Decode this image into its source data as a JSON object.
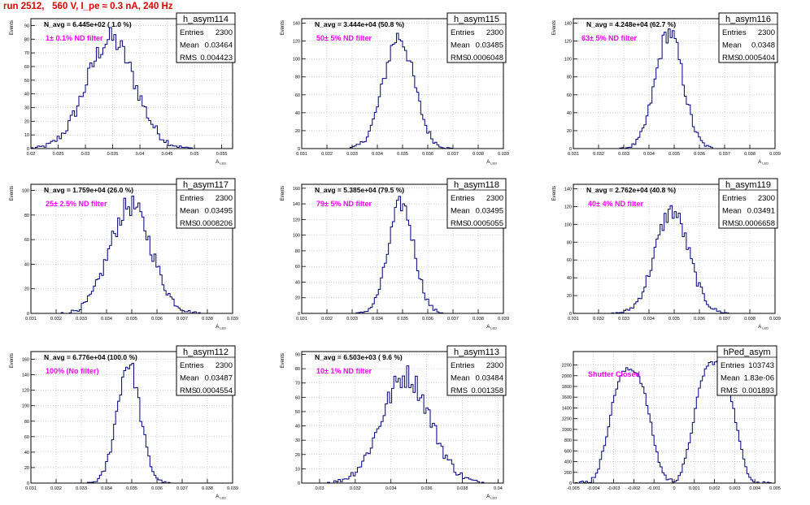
{
  "page": {
    "title": "run 2512,   560 V, I_pe ≈ 0.3 nA, 240 Hz"
  },
  "style": {
    "line_color": "#00007f",
    "annotation_color": "#ff00ff",
    "title_color": "#e00000",
    "grid_color": "#b0b0b0"
  },
  "chart_data": [
    {
      "type": "histogram",
      "name": "h_asym114",
      "ylabel": "Events",
      "xlabel": "A_LED",
      "xlabel_main": "A",
      "xlabel_sub": "LED",
      "navg": "N_avg = 6.445e+02 ( 1.0 %)",
      "annotation": "1± 0.1% ND filter",
      "stats": {
        "entries": "2300",
        "mean": "0.03464",
        "rms": "0.004423"
      },
      "stats_labels": {
        "entries": "Entries",
        "mean": "Mean",
        "rms": "RMS"
      },
      "xlim": [
        0.02,
        0.057
      ],
      "ylim": [
        0,
        95
      ],
      "xticks": [
        0.02,
        0.025,
        0.03,
        0.035,
        0.04,
        0.045,
        0.05,
        0.055
      ],
      "xtick_labels": [
        "0.02",
        "0.025",
        "0.03",
        "0.035",
        "0.04",
        "0.045",
        "0.05",
        "0.055"
      ],
      "yticks": [
        0,
        10,
        20,
        30,
        40,
        50,
        60,
        70,
        80,
        90
      ],
      "ytick_labels": [
        "0",
        "10",
        "20",
        "30",
        "40",
        "50",
        "60",
        "70",
        "80",
        "90"
      ],
      "mean": 0.03464,
      "rms": 0.004423,
      "peak": 80,
      "bin_width": 0.0004,
      "shutter": false
    },
    {
      "type": "histogram",
      "name": "h_asym115",
      "ylabel": "Events",
      "xlabel": "A_LED",
      "xlabel_main": "A",
      "xlabel_sub": "LED",
      "navg": "N_avg = 3.444e+04 (50.8 %)",
      "annotation": "50± 5% ND filter",
      "stats": {
        "entries": "2300",
        "mean": "0.03485",
        "rms": "0.0006048"
      },
      "stats_labels": {
        "entries": "Entries",
        "mean": "Mean",
        "rms": "RMS"
      },
      "xlim": [
        0.031,
        0.039
      ],
      "ylim": [
        0,
        145
      ],
      "xticks": [
        0.031,
        0.032,
        0.033,
        0.034,
        0.035,
        0.036,
        0.037,
        0.038,
        0.039
      ],
      "xtick_labels": [
        "0.031",
        "0.032",
        "0.033",
        "0.034",
        "0.035",
        "0.036",
        "0.037",
        "0.038",
        "0.039"
      ],
      "yticks": [
        0,
        20,
        40,
        60,
        80,
        100,
        120,
        140
      ],
      "ytick_labels": [
        "0",
        "20",
        "40",
        "60",
        "80",
        "100",
        "120",
        "140"
      ],
      "mean": 0.03485,
      "rms": 0.0006048,
      "peak": 125,
      "bin_width": 8e-05,
      "shutter": false
    },
    {
      "type": "histogram",
      "name": "h_asym116",
      "ylabel": "Events",
      "xlabel": "A_LED",
      "xlabel_main": "A",
      "xlabel_sub": "LED",
      "navg": "N_avg = 4.248e+04 (62.7 %)",
      "annotation": "63± 5% ND filter",
      "stats": {
        "entries": "2300",
        "mean": "0.0348",
        "rms": "0.0005404"
      },
      "stats_labels": {
        "entries": "Entries",
        "mean": "Mean",
        "rms": "RMS"
      },
      "xlim": [
        0.031,
        0.039
      ],
      "ylim": [
        0,
        145
      ],
      "xticks": [
        0.031,
        0.032,
        0.033,
        0.034,
        0.035,
        0.036,
        0.037,
        0.038,
        0.039
      ],
      "xtick_labels": [
        "0.031",
        "0.032",
        "0.033",
        "0.034",
        "0.035",
        "0.036",
        "0.037",
        "0.038",
        "0.039"
      ],
      "yticks": [
        0,
        20,
        40,
        60,
        80,
        100,
        120,
        140
      ],
      "ytick_labels": [
        "0",
        "20",
        "40",
        "60",
        "80",
        "100",
        "120",
        "140"
      ],
      "mean": 0.0348,
      "rms": 0.0005404,
      "peak": 130,
      "bin_width": 8e-05,
      "shutter": false
    },
    {
      "type": "histogram",
      "name": "h_asym117",
      "ylabel": "Events",
      "xlabel": "A_LED",
      "xlabel_main": "A",
      "xlabel_sub": "LED",
      "navg": "N_avg = 1.759e+04 (26.0 %)",
      "annotation": "25± 2.5% ND filter",
      "stats": {
        "entries": "2300",
        "mean": "0.03495",
        "rms": "0.0008206"
      },
      "stats_labels": {
        "entries": "Entries",
        "mean": "Mean",
        "rms": "RMS"
      },
      "xlim": [
        0.031,
        0.039
      ],
      "ylim": [
        0,
        105
      ],
      "xticks": [
        0.031,
        0.032,
        0.033,
        0.034,
        0.035,
        0.036,
        0.037,
        0.038,
        0.039
      ],
      "xtick_labels": [
        "0.031",
        "0.032",
        "0.033",
        "0.034",
        "0.035",
        "0.036",
        "0.037",
        "0.038",
        "0.039"
      ],
      "yticks": [
        0,
        20,
        40,
        60,
        80,
        100
      ],
      "ytick_labels": [
        "0",
        "20",
        "40",
        "60",
        "80",
        "100"
      ],
      "mean": 0.03495,
      "rms": 0.0008206,
      "peak": 88,
      "bin_width": 8e-05,
      "shutter": false
    },
    {
      "type": "histogram",
      "name": "h_asym118",
      "ylabel": "Events",
      "xlabel": "A_LED",
      "xlabel_main": "A",
      "xlabel_sub": "LED",
      "navg": "N_avg = 5.385e+04 (79.5 %)",
      "annotation": "79± 5% ND filter",
      "stats": {
        "entries": "2300",
        "mean": "0.03495",
        "rms": "0.0005055"
      },
      "stats_labels": {
        "entries": "Entries",
        "mean": "Mean",
        "rms": "RMS"
      },
      "xlim": [
        0.031,
        0.039
      ],
      "ylim": [
        0,
        165
      ],
      "xticks": [
        0.031,
        0.032,
        0.033,
        0.034,
        0.035,
        0.036,
        0.037,
        0.038,
        0.039
      ],
      "xtick_labels": [
        "0.031",
        "0.032",
        "0.033",
        "0.034",
        "0.035",
        "0.036",
        "0.037",
        "0.038",
        "0.039"
      ],
      "yticks": [
        0,
        20,
        40,
        60,
        80,
        100,
        120,
        140,
        160
      ],
      "ytick_labels": [
        "0",
        "20",
        "40",
        "60",
        "80",
        "100",
        "120",
        "140",
        "160"
      ],
      "mean": 0.03495,
      "rms": 0.0005055,
      "peak": 140,
      "bin_width": 8e-05,
      "shutter": false
    },
    {
      "type": "histogram",
      "name": "h_asym119",
      "ylabel": "Events",
      "xlabel": "A_LED",
      "xlabel_main": "A",
      "xlabel_sub": "LED",
      "navg": "N_avg = 2.762e+04 (40.8 %)",
      "annotation": "40± 4% ND filter",
      "stats": {
        "entries": "2300",
        "mean": "0.03491",
        "rms": "0.0006658"
      },
      "stats_labels": {
        "entries": "Entries",
        "mean": "Mean",
        "rms": "RMS"
      },
      "xlim": [
        0.031,
        0.039
      ],
      "ylim": [
        0,
        145
      ],
      "xticks": [
        0.031,
        0.032,
        0.033,
        0.034,
        0.035,
        0.036,
        0.037,
        0.038,
        0.039
      ],
      "xtick_labels": [
        "0.031",
        "0.032",
        "0.033",
        "0.034",
        "0.035",
        "0.036",
        "0.037",
        "0.038",
        "0.039"
      ],
      "yticks": [
        0,
        20,
        40,
        60,
        80,
        100,
        120,
        140
      ],
      "ytick_labels": [
        "0",
        "20",
        "40",
        "60",
        "80",
        "100",
        "120",
        "140"
      ],
      "mean": 0.03491,
      "rms": 0.0006658,
      "peak": 115,
      "bin_width": 8e-05,
      "shutter": false
    },
    {
      "type": "histogram",
      "name": "h_asym112",
      "ylabel": "Events",
      "xlabel": "A_LED",
      "xlabel_main": "A",
      "xlabel_sub": "LED",
      "navg": "N_avg = 6.776e+04 (100.0 %)",
      "annotation": "100% (No filter)",
      "stats": {
        "entries": "2300",
        "mean": "0.03487",
        "rms": "0.0004554"
      },
      "stats_labels": {
        "entries": "Entries",
        "mean": "Mean",
        "rms": "RMS"
      },
      "xlim": [
        0.031,
        0.039
      ],
      "ylim": [
        0,
        170
      ],
      "xticks": [
        0.031,
        0.032,
        0.033,
        0.034,
        0.035,
        0.036,
        0.037,
        0.038,
        0.039
      ],
      "xtick_labels": [
        "0.031",
        "0.032",
        "0.033",
        "0.034",
        "0.035",
        "0.036",
        "0.037",
        "0.038",
        "0.039"
      ],
      "yticks": [
        0,
        20,
        40,
        60,
        80,
        100,
        120,
        140,
        160
      ],
      "ytick_labels": [
        "0",
        "20",
        "40",
        "60",
        "80",
        "100",
        "120",
        "140",
        "160"
      ],
      "mean": 0.03487,
      "rms": 0.0004554,
      "peak": 155,
      "bin_width": 8e-05,
      "shutter": false
    },
    {
      "type": "histogram",
      "name": "h_asym113",
      "ylabel": "Events",
      "xlabel": "A_LED",
      "xlabel_main": "A",
      "xlabel_sub": "LED",
      "navg": "N_avg = 6.503e+03 ( 9.6 %)",
      "annotation": "10± 1% ND filter",
      "stats": {
        "entries": "2300",
        "mean": "0.03484",
        "rms": "0.001358"
      },
      "stats_labels": {
        "entries": "Entries",
        "mean": "Mean",
        "rms": "RMS"
      },
      "xlim": [
        0.029,
        0.0403
      ],
      "ylim": [
        0,
        92
      ],
      "xticks": [
        0.03,
        0.032,
        0.034,
        0.036,
        0.038,
        0.04
      ],
      "xtick_labels": [
        "0.03",
        "0.032",
        "0.034",
        "0.036",
        "0.038",
        "0.04"
      ],
      "yticks": [
        0,
        10,
        20,
        30,
        40,
        50,
        60,
        70,
        80,
        90
      ],
      "ytick_labels": [
        "0",
        "10",
        "20",
        "30",
        "40",
        "50",
        "60",
        "70",
        "80",
        "90"
      ],
      "mean": 0.03484,
      "rms": 0.001358,
      "peak": 75,
      "bin_width": 0.00012,
      "shutter": false
    },
    {
      "type": "histogram",
      "name": "hPed_asym",
      "ylabel": "",
      "xlabel": "",
      "xlabel_main": "",
      "xlabel_sub": "",
      "navg": "",
      "annotation": "Shutter Closed",
      "stats": {
        "entries": "103743",
        "mean": "1.83e-06",
        "rms": "0.001893"
      },
      "stats_labels": {
        "entries": "Entries",
        "mean": "Mean",
        "rms": "RMS"
      },
      "xlim": [
        -0.005,
        0.005
      ],
      "ylim": [
        0,
        2450
      ],
      "xticks": [
        -0.005,
        -0.004,
        -0.003,
        -0.002,
        -0.001,
        0,
        0.001,
        0.002,
        0.003,
        0.004,
        0.005
      ],
      "xtick_labels": [
        "-0.005",
        "-0.004",
        "-0.003",
        "-0.002",
        "-0.001",
        "0",
        "0.001",
        "0.002",
        "0.003",
        "0.004",
        "0.005"
      ],
      "yticks": [
        0,
        200,
        400,
        600,
        800,
        1000,
        1200,
        1400,
        1600,
        1800,
        2000,
        2200
      ],
      "ytick_labels": [
        "0",
        "200",
        "400",
        "600",
        "800",
        "1000",
        "1200",
        "1400",
        "1600",
        "1800",
        "2000",
        "2200"
      ],
      "mean": 1.83e-06,
      "rms": 0.001893,
      "peak": 2250,
      "bin_width": 0.0001,
      "shutter": true
    }
  ]
}
